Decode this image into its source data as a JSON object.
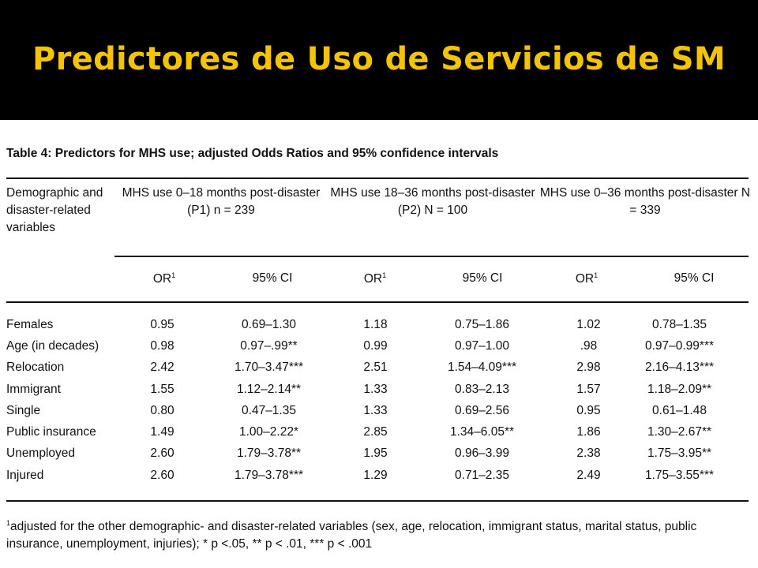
{
  "slide": {
    "title": "Predictores de Uso de Servicios de SM"
  },
  "table": {
    "caption": "Table 4: Predictors for MHS use; adjusted Odds Ratios and 95% confidence intervals",
    "row_header": [
      "Demographic and",
      "disaster-related",
      "variables"
    ],
    "groups": [
      {
        "line1": "MHS use 0–18 months post-disaster",
        "line2": "(P1) n = 239"
      },
      {
        "line1": "MHS use 18–36 months post-disaster",
        "line2": "(P2) N = 100"
      },
      {
        "line1": "MHS use 0–36 months post-disaster N",
        "line2": "= 339"
      }
    ],
    "sub_or": "OR",
    "sub_or_sup": "1",
    "sub_ci": "95% CI",
    "rows": [
      {
        "variable": "Females",
        "or1": "0.95",
        "ci1": "0.69–1.30",
        "or2": "1.18",
        "ci2": "0.75–1.86",
        "or3": "1.02",
        "ci3": "0.78–1.35"
      },
      {
        "variable": "Age (in decades)",
        "or1": "0.98",
        "ci1": "0.97–.99**",
        "or2": "0.99",
        "ci2": "0.97–1.00",
        "or3": ".98",
        "ci3": "0.97–0.99***"
      },
      {
        "variable": "Relocation",
        "or1": "2.42",
        "ci1": "1.70–3.47***",
        "or2": "2.51",
        "ci2": "1.54–4.09***",
        "or3": "2.98",
        "ci3": "2.16–4.13***"
      },
      {
        "variable": "Immigrant",
        "or1": "1.55",
        "ci1": "1.12–2.14**",
        "or2": "1.33",
        "ci2": "0.83–2.13",
        "or3": "1.57",
        "ci3": "1.18–2.09**"
      },
      {
        "variable": "Single",
        "or1": "0.80",
        "ci1": "0.47–1.35",
        "or2": "1.33",
        "ci2": "0.69–2.56",
        "or3": "0.95",
        "ci3": "0.61–1.48"
      },
      {
        "variable": "Public insurance",
        "or1": "1.49",
        "ci1": "1.00–2.22*",
        "or2": "2.85",
        "ci2": "1.34–6.05**",
        "or3": "1.86",
        "ci3": "1.30–2.67**"
      },
      {
        "variable": "Unemployed",
        "or1": "2.60",
        "ci1": "1.79–3.78**",
        "or2": "1.95",
        "ci2": "0.96–3.99",
        "or3": "2.38",
        "ci3": "1.75–3.95**"
      },
      {
        "variable": "Injured",
        "or1": "2.60",
        "ci1": "1.79–3.78***",
        "or2": "1.29",
        "ci2": "0.71–2.35",
        "or3": "2.49",
        "ci3": "1.75–3.55***"
      }
    ],
    "footnote_mark": "1",
    "footnote": "adjusted for the other demographic- and disaster-related variables (sex, age, relocation, immigrant status, marital status, public insurance, unemployment, injuries); * p <.05, ** p < .01, *** p < .001"
  },
  "colors": {
    "background": "#000000",
    "title": "#f5c400",
    "sheet": "#ffffff",
    "text": "#111111"
  }
}
